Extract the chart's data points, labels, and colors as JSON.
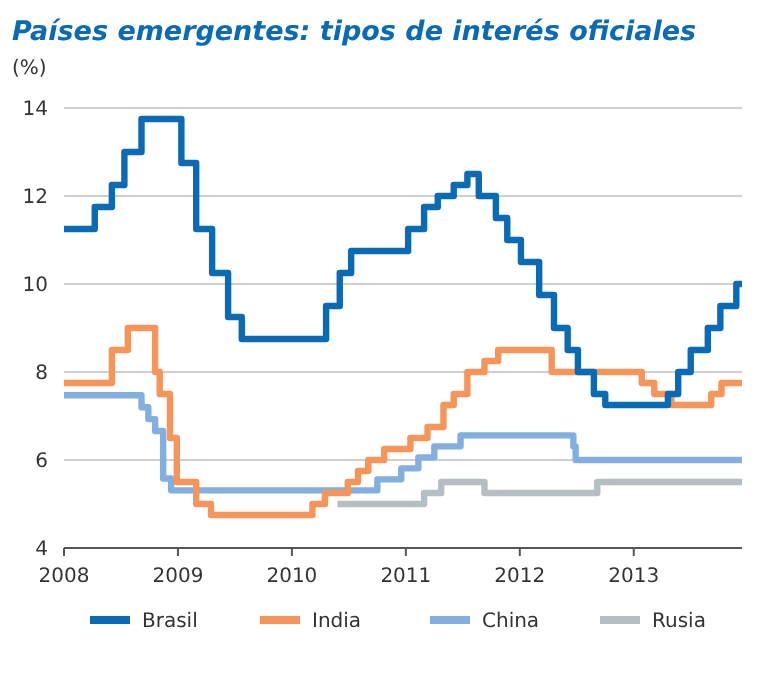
{
  "chart_data": {
    "type": "step",
    "title": "Países emergentes: tipos de interés oficiales",
    "ylabel": "(%)",
    "xlim": [
      2008,
      2013.95
    ],
    "xticks": [
      2008,
      2009,
      2010,
      2011,
      2012,
      2013
    ],
    "ylim": [
      4,
      14
    ],
    "yticks": [
      4,
      6,
      8,
      10,
      12,
      14
    ],
    "grid": "y",
    "legend": "bottom",
    "marker": "none",
    "line_style": "solid",
    "series": [
      {
        "name": "Rusia",
        "color": "#b4bec3",
        "x": [
          2010.4,
          2011.16,
          2011.31,
          2011.69,
          2012.68,
          2013.95
        ],
        "values": [
          5.0,
          5.25,
          5.5,
          5.25,
          5.5,
          5.5
        ]
      },
      {
        "name": "China",
        "color": "#82aee0",
        "x": [
          2008,
          2008.68,
          2008.74,
          2008.8,
          2008.87,
          2008.94,
          2010.75,
          2010.96,
          2011.11,
          2011.25,
          2011.48,
          2012.47,
          2012.49,
          2013.95
        ],
        "values": [
          7.47,
          7.2,
          6.93,
          6.66,
          5.58,
          5.31,
          5.56,
          5.81,
          6.06,
          6.31,
          6.56,
          6.31,
          6.0,
          6.0
        ]
      },
      {
        "name": "India",
        "color": "#f5955a",
        "x": [
          2008,
          2008.42,
          2008.56,
          2008.8,
          2008.84,
          2008.93,
          2008.99,
          2009.16,
          2009.29,
          2010.18,
          2010.29,
          2010.49,
          2010.58,
          2010.67,
          2010.81,
          2011.04,
          2011.19,
          2011.33,
          2011.42,
          2011.54,
          2011.69,
          2011.81,
          2012.28,
          2013.07,
          2013.18,
          2013.33,
          2013.68,
          2013.77,
          2013.95
        ],
        "values": [
          7.75,
          8.5,
          9.0,
          8.0,
          7.5,
          6.5,
          5.5,
          5.0,
          4.75,
          5.0,
          5.25,
          5.5,
          5.75,
          6.0,
          6.25,
          6.5,
          6.75,
          7.25,
          7.5,
          8.0,
          8.25,
          8.5,
          8.0,
          7.75,
          7.5,
          7.25,
          7.5,
          7.75,
          7.75
        ]
      },
      {
        "name": "Brasil",
        "color": "#0a6ab4",
        "x": [
          2008,
          2008.27,
          2008.42,
          2008.53,
          2008.68,
          2009.03,
          2009.16,
          2009.3,
          2009.44,
          2009.56,
          2010.3,
          2010.42,
          2010.52,
          2011.02,
          2011.16,
          2011.28,
          2011.42,
          2011.54,
          2011.64,
          2011.79,
          2011.89,
          2012.01,
          2012.17,
          2012.3,
          2012.42,
          2012.51,
          2012.65,
          2012.75,
          2013.3,
          2013.39,
          2013.5,
          2013.65,
          2013.76,
          2013.9,
          2013.95
        ],
        "values": [
          11.25,
          11.75,
          12.25,
          13.0,
          13.75,
          12.75,
          11.25,
          10.25,
          9.25,
          8.75,
          9.5,
          10.25,
          10.75,
          11.25,
          11.75,
          12.0,
          12.25,
          12.5,
          12.0,
          11.5,
          11.0,
          10.5,
          9.75,
          9.0,
          8.5,
          8.0,
          7.5,
          7.25,
          7.5,
          8.0,
          8.5,
          9.0,
          9.5,
          10.0,
          10.0
        ]
      }
    ]
  }
}
